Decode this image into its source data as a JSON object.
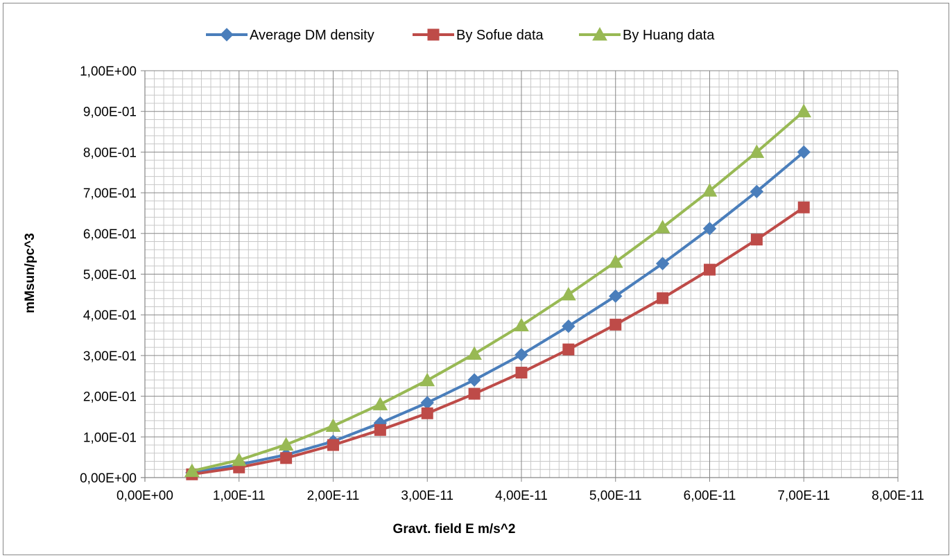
{
  "chart_data": {
    "type": "line",
    "title": "",
    "xlabel": "Gravt. field E m/s^2",
    "ylabel": "mMsun/pc^3",
    "xlim": [
      0,
      8e-11
    ],
    "ylim": [
      0,
      1
    ],
    "x_ticks": [
      "0,00E+00",
      "1,00E-11",
      "2,00E-11",
      "3,00E-11",
      "4,00E-11",
      "5,00E-11",
      "6,00E-11",
      "7,00E-11",
      "8,00E-11"
    ],
    "y_ticks": [
      "0,00E+00",
      "1,00E-01",
      "2,00E-01",
      "3,00E-01",
      "4,00E-01",
      "5,00E-01",
      "6,00E-01",
      "7,00E-01",
      "8,00E-01",
      "9,00E-01",
      "1,00E+00"
    ],
    "x": [
      5e-12,
      1e-11,
      1.5e-11,
      2e-11,
      2.5e-11,
      3e-11,
      3.5e-11,
      4e-11,
      4.5e-11,
      5e-11,
      5.5e-11,
      6e-11,
      6.5e-11,
      7e-11
    ],
    "grid": true,
    "legend_position": "top",
    "series": [
      {
        "name": "Average DM density",
        "color": "#4a7ebb",
        "marker": "diamond",
        "values": [
          0.012,
          0.032,
          0.056,
          0.089,
          0.134,
          0.184,
          0.24,
          0.302,
          0.372,
          0.446,
          0.526,
          0.612,
          0.703,
          0.8
        ]
      },
      {
        "name": "By Sofue data",
        "color": "#be4b48",
        "marker": "square",
        "values": [
          0.008,
          0.025,
          0.048,
          0.08,
          0.117,
          0.158,
          0.206,
          0.258,
          0.315,
          0.376,
          0.441,
          0.511,
          0.585,
          0.664
        ]
      },
      {
        "name": "By Huang data",
        "color": "#98b954",
        "marker": "triangle",
        "values": [
          0.016,
          0.043,
          0.081,
          0.127,
          0.18,
          0.239,
          0.304,
          0.374,
          0.45,
          0.53,
          0.615,
          0.705,
          0.8,
          0.9
        ]
      }
    ]
  }
}
